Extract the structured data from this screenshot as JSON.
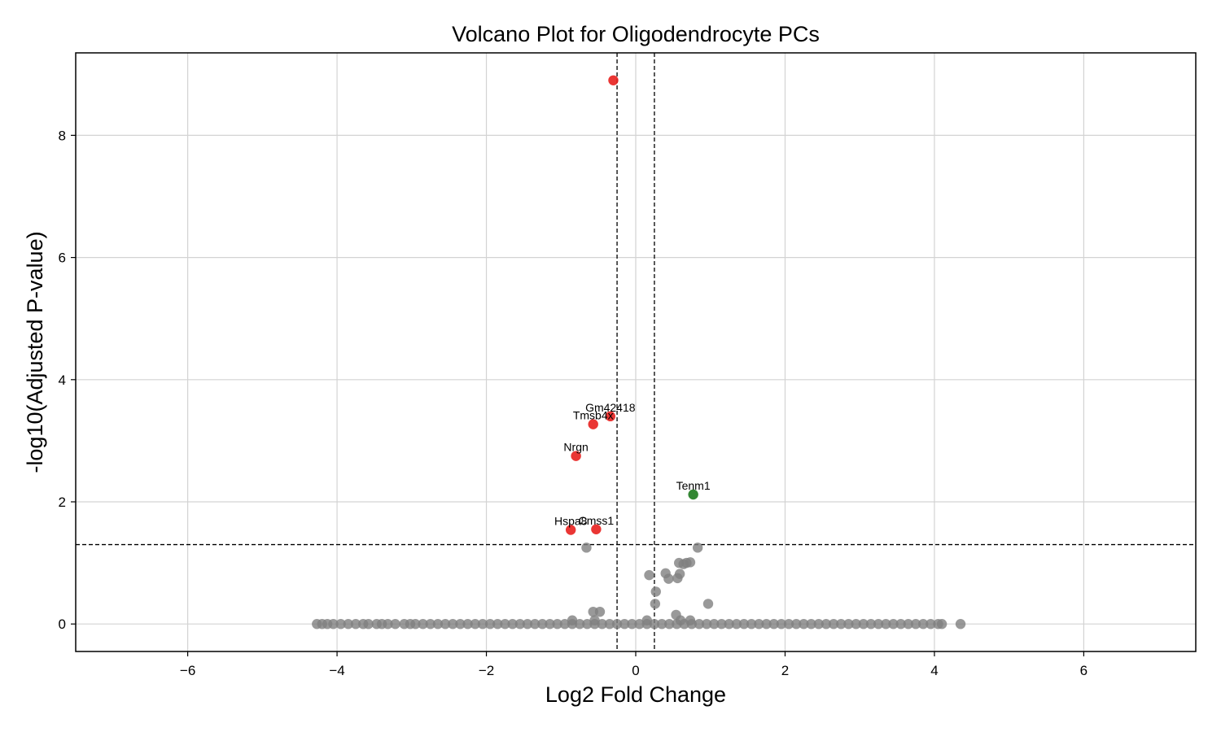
{
  "chart_data": {
    "type": "scatter",
    "title": "Volcano Plot for Oligodendrocyte PCs",
    "xlabel": "Log2 Fold Change",
    "ylabel": "-log10(Adjusted P-value)",
    "xlim": [
      -7.5,
      7.5
    ],
    "ylim": [
      -0.45,
      9.35
    ],
    "xticks": [
      -6,
      -4,
      -2,
      0,
      2,
      4,
      6
    ],
    "xtick_labels": [
      "−6",
      "−4",
      "−2",
      "0",
      "2",
      "4",
      "6"
    ],
    "yticks": [
      0,
      2,
      4,
      6,
      8
    ],
    "ytick_labels": [
      "0",
      "2",
      "4",
      "6",
      "8"
    ],
    "grid": true,
    "thresholds": {
      "log2fc": [
        -0.25,
        0.25
      ],
      "neg_log10_p": 1.3
    },
    "colors": {
      "nonsignificant": "#808080",
      "down": "#e8201e",
      "up": "#1e7a1e"
    },
    "series": [
      {
        "group": "down",
        "x": [
          -0.3,
          -0.34,
          -0.57,
          -0.8,
          -0.87,
          -0.53
        ],
        "y": [
          8.9,
          3.4,
          3.27,
          2.75,
          1.54,
          1.55
        ],
        "labels": [
          "",
          "Gm42418",
          "Tmsb4x",
          "Nrgn",
          "Hspa8",
          "Cmss1"
        ]
      },
      {
        "group": "up",
        "x": [
          0.77
        ],
        "y": [
          2.12
        ],
        "labels": [
          "Tenm1"
        ]
      },
      {
        "group": "nonsignificant",
        "x": [
          -0.66,
          0.83,
          0.58,
          0.64,
          0.73,
          0.68,
          0.4,
          0.44,
          0.59,
          0.56,
          0.18,
          0.27,
          0.26,
          0.97,
          -0.57,
          -0.48,
          0.54,
          -0.85,
          -0.55,
          0.15,
          0.6,
          0.73
        ],
        "y": [
          1.25,
          1.25,
          1.0,
          0.98,
          1.01,
          1.0,
          0.83,
          0.74,
          0.82,
          0.75,
          0.8,
          0.53,
          0.33,
          0.33,
          0.2,
          0.2,
          0.15,
          0.06,
          0.06,
          0.06,
          0.06,
          0.06
        ]
      },
      {
        "group": "nonsignificant-baseline",
        "x": [
          -4.27,
          -4.2,
          -4.13,
          -4.05,
          -3.95,
          -3.85,
          -3.75,
          -3.65,
          -3.58,
          -3.47,
          -3.4,
          -3.32,
          -3.22,
          -3.1,
          -3.02,
          -2.95,
          -2.85,
          -2.75,
          -2.65,
          -2.55,
          -2.45,
          -2.35,
          -2.25,
          -2.15,
          -2.05,
          -1.95,
          -1.85,
          -1.75,
          -1.65,
          -1.55,
          -1.45,
          -1.35,
          -1.25,
          -1.15,
          -1.05,
          -0.95,
          -0.85,
          -0.75,
          -0.65,
          -0.55,
          -0.45,
          -0.35,
          -0.25,
          -0.15,
          -0.05,
          0.05,
          0.15,
          0.25,
          0.35,
          0.45,
          0.55,
          0.65,
          0.75,
          0.85,
          0.95,
          1.05,
          1.15,
          1.25,
          1.35,
          1.45,
          1.55,
          1.65,
          1.75,
          1.85,
          1.95,
          2.05,
          2.15,
          2.25,
          2.35,
          2.45,
          2.55,
          2.65,
          2.75,
          2.85,
          2.95,
          3.05,
          3.15,
          3.25,
          3.35,
          3.45,
          3.55,
          3.65,
          3.75,
          3.85,
          3.95,
          4.05,
          4.1,
          4.35
        ],
        "y": [
          0,
          0,
          0,
          0,
          0,
          0,
          0,
          0,
          0,
          0,
          0,
          0,
          0,
          0,
          0,
          0,
          0,
          0,
          0,
          0,
          0,
          0,
          0,
          0,
          0,
          0,
          0,
          0,
          0,
          0,
          0,
          0,
          0,
          0,
          0,
          0,
          0,
          0,
          0,
          0,
          0,
          0,
          0,
          0,
          0,
          0,
          0,
          0,
          0,
          0,
          0,
          0,
          0,
          0,
          0,
          0,
          0,
          0,
          0,
          0,
          0,
          0,
          0,
          0,
          0,
          0,
          0,
          0,
          0,
          0,
          0,
          0,
          0,
          0,
          0,
          0,
          0,
          0,
          0,
          0,
          0,
          0,
          0,
          0,
          0,
          0,
          0,
          0
        ]
      }
    ]
  }
}
